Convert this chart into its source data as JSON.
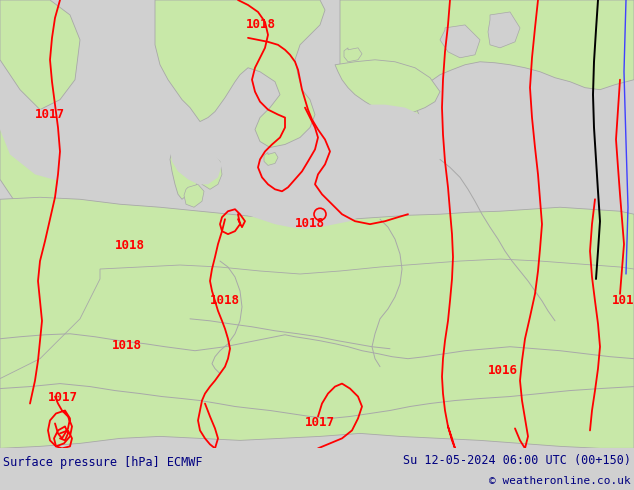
{
  "title_left": "Surface pressure [hPa] ECMWF",
  "title_right": "Su 12-05-2024 06:00 UTC (00+150)",
  "copyright": "© weatheronline.co.uk",
  "green_land": "#c8e8a8",
  "gray_sea": "#d0d0d0",
  "coast_line": "#a8a8a8",
  "red_isobar": "#ff0000",
  "blue_line": "#4040ff",
  "black_line": "#000000",
  "white_bar": "#ffffff",
  "dark_blue": "#000080",
  "fig_w": 6.34,
  "fig_h": 4.9,
  "dpi": 100
}
